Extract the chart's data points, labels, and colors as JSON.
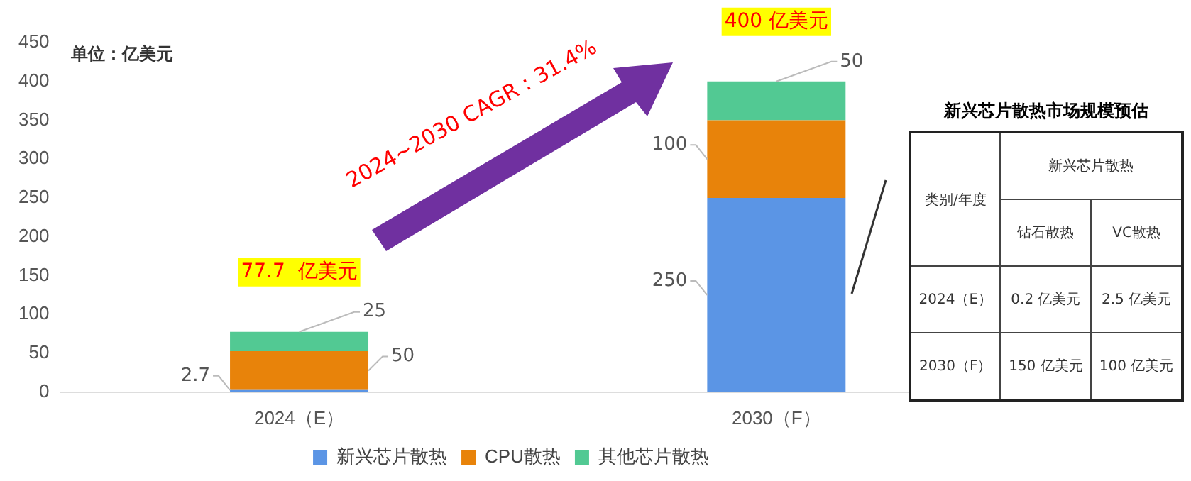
{
  "chart_data": [
    {
      "type": "bar",
      "stacked": true,
      "categories": [
        "2024（E）",
        "2030（F）"
      ],
      "series": [
        {
          "name": "新兴芯片散热",
          "color": "#5b95e5",
          "values": [
            2.7,
            250
          ]
        },
        {
          "name": "CPU散热",
          "color": "#e8830a",
          "values": [
            50,
            100
          ]
        },
        {
          "name": "其他芯片散热",
          "color": "#52c993",
          "values": [
            25,
            50
          ]
        }
      ],
      "ylim": [
        0,
        450
      ],
      "yticks": [
        0,
        50,
        100,
        150,
        200,
        250,
        300,
        350,
        400,
        450
      ],
      "grid": false,
      "legend": "bottom",
      "data_labels": true,
      "totals": [
        "77.7  亿美元",
        "400 亿美元"
      ],
      "annotations": [
        "单位：亿美元",
        "2024~2030 CAGR：31.4%"
      ]
    },
    {
      "type": "other",
      "title": "新兴芯片散热市场规模预估",
      "annotations": [
        "类别/年度",
        "新兴芯片散热",
        "钻石散热",
        "VC散热",
        "2024（E）",
        "0.2 亿美元",
        "2.5 亿美元",
        "2030（F）",
        "150 亿美元",
        "100 亿美元"
      ]
    }
  ]
}
